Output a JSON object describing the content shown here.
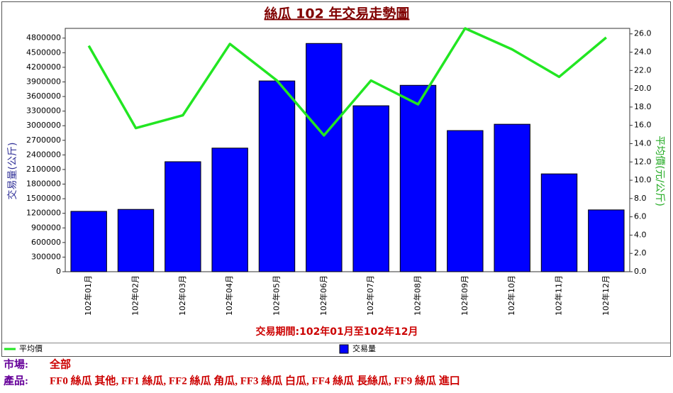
{
  "chart_data": {
    "type": "bar-line",
    "title": "絲瓜 102 年交易走勢圖",
    "x_label": "交易期間:102年01月至102年12月",
    "y_label": "交易量(公斤)",
    "y2_label": "平均價(元/公斤)",
    "categories": [
      "102年01月",
      "102年02月",
      "102年03月",
      "102年04月",
      "102年05月",
      "102年06月",
      "102年07月",
      "102年08月",
      "102年09月",
      "102年10月",
      "102年11月",
      "102年12月"
    ],
    "series": [
      {
        "name": "交易量",
        "type": "bar",
        "color": "#0000ff",
        "values": [
          1240000,
          1280000,
          2260000,
          2540000,
          3920000,
          4690000,
          3410000,
          3830000,
          2900000,
          3030000,
          2010000,
          1270000
        ]
      },
      {
        "name": "平均價",
        "type": "line",
        "color": "#22e622",
        "axis": "y2",
        "values": [
          24.7,
          15.7,
          17.1,
          24.9,
          20.9,
          14.9,
          20.9,
          18.3,
          26.6,
          24.3,
          21.3,
          25.6
        ]
      }
    ],
    "ylim": [
      0,
      5000000
    ],
    "yticks": [
      0,
      300000,
      600000,
      900000,
      1200000,
      1500000,
      1800000,
      2100000,
      2400000,
      2700000,
      3000000,
      3300000,
      3600000,
      3900000,
      4200000,
      4500000,
      4800000
    ],
    "y2lim": [
      0,
      26.6
    ],
    "y2ticks": [
      {
        "value": 0,
        "label": "0.0"
      },
      {
        "value": 2,
        "label": "2.0"
      },
      {
        "value": 4,
        "label": "4.0"
      },
      {
        "value": 6,
        "label": "6.0"
      },
      {
        "value": 8,
        "label": "8.0"
      },
      {
        "value": 10,
        "label": "10.0"
      },
      {
        "value": 12,
        "label": "12.0"
      },
      {
        "value": 14,
        "label": "14.0"
      },
      {
        "value": 16,
        "label": "16.0"
      },
      {
        "value": 18,
        "label": "18.0"
      },
      {
        "value": 20,
        "label": "20.0"
      },
      {
        "value": 22,
        "label": "22.0"
      },
      {
        "value": 24,
        "label": "24.0"
      },
      {
        "value": 26,
        "label": "26.0"
      }
    ],
    "grid": false,
    "legend": "bottom"
  },
  "info": {
    "market_label": "市場:",
    "market": "全部",
    "product_label": "產品:",
    "products": "FF0 絲瓜 其他, FF1 絲瓜, FF2 絲瓜 角瓜, FF3 絲瓜 白瓜, FF4 絲瓜 長絲瓜, FF9 絲瓜 進口"
  }
}
